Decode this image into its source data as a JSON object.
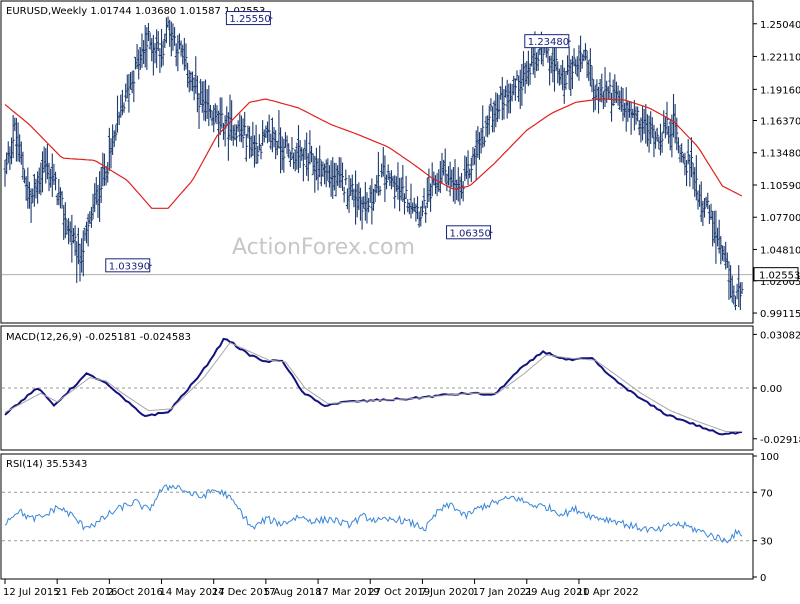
{
  "watermark": "ActionForex.com",
  "colors": {
    "price_bar": "#1c3a6e",
    "ma": "#e0211d",
    "macd": "#13137f",
    "macd_signal": "#a7a7a7",
    "rsi": "#3a86d8",
    "frame": "#000000",
    "grid": "#9a9a9a",
    "annotation_box": "#1a237e"
  },
  "chart_data": [
    {
      "id": "price",
      "type": "ohlc",
      "title": "EURUSD,Weekly  1.01744 1.03680 1.01587 1.02553",
      "ylim": [
        0.984,
        1.269
      ],
      "y_ticks": [
        "1.25040",
        "1.22110",
        "1.19160",
        "1.16370",
        "1.13480",
        "1.10590",
        "1.07700",
        "1.04810",
        "1.02005",
        "0.99115"
      ],
      "last_price": "1.02553",
      "series_anchors": [
        [
          0,
          1.115
        ],
        [
          6,
          1.155
        ],
        [
          16,
          1.09
        ],
        [
          24,
          1.125
        ],
        [
          30,
          1.11
        ],
        [
          38,
          1.07
        ],
        [
          46,
          1.04
        ],
        [
          50,
          1.06
        ],
        [
          56,
          1.095
        ],
        [
          64,
          1.13
        ],
        [
          72,
          1.175
        ],
        [
          80,
          1.21
        ],
        [
          88,
          1.235
        ],
        [
          96,
          1.225
        ],
        [
          100,
          1.25
        ],
        [
          106,
          1.23
        ],
        [
          114,
          1.2
        ],
        [
          124,
          1.17
        ],
        [
          134,
          1.16
        ],
        [
          144,
          1.155
        ],
        [
          154,
          1.14
        ],
        [
          164,
          1.15
        ],
        [
          174,
          1.135
        ],
        [
          184,
          1.13
        ],
        [
          194,
          1.12
        ],
        [
          204,
          1.11
        ],
        [
          214,
          1.1
        ],
        [
          222,
          1.085
        ],
        [
          232,
          1.115
        ],
        [
          242,
          1.1
        ],
        [
          250,
          1.09
        ],
        [
          256,
          1.08
        ],
        [
          262,
          1.1
        ],
        [
          270,
          1.12
        ],
        [
          274,
          1.105
        ],
        [
          280,
          1.1
        ],
        [
          290,
          1.14
        ],
        [
          300,
          1.175
        ],
        [
          310,
          1.19
        ],
        [
          320,
          1.205
        ],
        [
          328,
          1.225
        ],
        [
          334,
          1.22
        ],
        [
          342,
          1.2
        ],
        [
          350,
          1.215
        ],
        [
          356,
          1.225
        ],
        [
          362,
          1.185
        ],
        [
          370,
          1.19
        ],
        [
          380,
          1.175
        ],
        [
          390,
          1.16
        ],
        [
          400,
          1.15
        ],
        [
          410,
          1.16
        ],
        [
          416,
          1.13
        ],
        [
          422,
          1.12
        ],
        [
          426,
          1.095
        ],
        [
          432,
          1.08
        ],
        [
          436,
          1.06
        ],
        [
          440,
          1.04
        ],
        [
          444,
          1.025
        ],
        [
          448,
          1.0
        ],
        [
          452,
          1.02
        ]
      ],
      "ma_anchors": [
        [
          0,
          1.178
        ],
        [
          15,
          1.16
        ],
        [
          35,
          1.13
        ],
        [
          55,
          1.128
        ],
        [
          75,
          1.11
        ],
        [
          90,
          1.085
        ],
        [
          100,
          1.085
        ],
        [
          115,
          1.11
        ],
        [
          130,
          1.15
        ],
        [
          150,
          1.18
        ],
        [
          160,
          1.183
        ],
        [
          180,
          1.175
        ],
        [
          200,
          1.16
        ],
        [
          215,
          1.152
        ],
        [
          235,
          1.14
        ],
        [
          250,
          1.125
        ],
        [
          262,
          1.112
        ],
        [
          275,
          1.102
        ],
        [
          285,
          1.105
        ],
        [
          300,
          1.125
        ],
        [
          320,
          1.155
        ],
        [
          335,
          1.17
        ],
        [
          350,
          1.18
        ],
        [
          365,
          1.183
        ],
        [
          380,
          1.182
        ],
        [
          395,
          1.175
        ],
        [
          410,
          1.163
        ],
        [
          425,
          1.14
        ],
        [
          440,
          1.105
        ],
        [
          452,
          1.096
        ]
      ],
      "x_ticks": [
        {
          "i": 0,
          "label": "12 Jul 2015"
        },
        {
          "i": 32,
          "label": "21 Feb 2016"
        },
        {
          "i": 64,
          "label": "2 Oct 2016"
        },
        {
          "i": 96,
          "label": "14 May 2017"
        },
        {
          "i": 128,
          "label": "24 Dec 2017"
        },
        {
          "i": 160,
          "label": "5 Aug 2018"
        },
        {
          "i": 192,
          "label": "17 Mar 2019"
        },
        {
          "i": 224,
          "label": "27 Oct 2019"
        },
        {
          "i": 256,
          "label": "7 Jun 2020"
        },
        {
          "i": 288,
          "label": "17 Jan 2021"
        },
        {
          "i": 320,
          "label": "29 Aug 2021"
        },
        {
          "i": 352,
          "label": "10 Apr 2022"
        }
      ],
      "annotations": [
        {
          "label": "1.25550",
          "i": 164,
          "value": 1.2555,
          "pos": "left"
        },
        {
          "label": "1.03390",
          "i": 90,
          "value": 1.0339,
          "pos": "left"
        },
        {
          "label": "1.23480",
          "i": 347,
          "value": 1.2348,
          "pos": "left"
        },
        {
          "label": "1.06350",
          "i": 299,
          "value": 1.0635,
          "pos": "left"
        }
      ]
    },
    {
      "id": "macd",
      "type": "line",
      "title": "MACD(12,26,9) -0.025181 -0.024583",
      "ylim": [
        -0.0345,
        0.0345
      ],
      "y_ticks": [
        "0.030824",
        "0.00",
        "-0.029183"
      ],
      "series": [
        {
          "role": "macd",
          "anchors": [
            [
              0,
              -0.015
            ],
            [
              20,
              0.0
            ],
            [
              30,
              -0.01
            ],
            [
              50,
              0.008
            ],
            [
              60,
              0.004
            ],
            [
              70,
              -0.004
            ],
            [
              85,
              -0.016
            ],
            [
              100,
              -0.014
            ],
            [
              120,
              0.008
            ],
            [
              135,
              0.029
            ],
            [
              148,
              0.02
            ],
            [
              160,
              0.015
            ],
            [
              170,
              0.016
            ],
            [
              182,
              -0.002
            ],
            [
              195,
              -0.01
            ],
            [
              210,
              -0.008
            ],
            [
              230,
              -0.007
            ],
            [
              250,
              -0.006
            ],
            [
              270,
              -0.004
            ],
            [
              285,
              -0.003
            ],
            [
              300,
              -0.004
            ],
            [
              315,
              0.01
            ],
            [
              330,
              0.021
            ],
            [
              345,
              0.016
            ],
            [
              360,
              0.017
            ],
            [
              372,
              0.006
            ],
            [
              388,
              -0.005
            ],
            [
              405,
              -0.015
            ],
            [
              420,
              -0.02
            ],
            [
              440,
              -0.027
            ],
            [
              452,
              -0.025
            ]
          ]
        },
        {
          "role": "signal",
          "anchors": [
            [
              0,
              -0.014
            ],
            [
              22,
              -0.003
            ],
            [
              32,
              -0.008
            ],
            [
              52,
              0.006
            ],
            [
              62,
              0.004
            ],
            [
              72,
              -0.003
            ],
            [
              88,
              -0.013
            ],
            [
              102,
              -0.012
            ],
            [
              122,
              0.006
            ],
            [
              138,
              0.026
            ],
            [
              150,
              0.021
            ],
            [
              162,
              0.016
            ],
            [
              172,
              0.015
            ],
            [
              184,
              0.0
            ],
            [
              198,
              -0.009
            ],
            [
              212,
              -0.008
            ],
            [
              232,
              -0.007
            ],
            [
              252,
              -0.006
            ],
            [
              272,
              -0.004
            ],
            [
              288,
              -0.003
            ],
            [
              302,
              -0.003
            ],
            [
              318,
              0.008
            ],
            [
              332,
              0.019
            ],
            [
              348,
              0.017
            ],
            [
              362,
              0.016
            ],
            [
              374,
              0.008
            ],
            [
              390,
              -0.003
            ],
            [
              408,
              -0.013
            ],
            [
              424,
              -0.019
            ],
            [
              442,
              -0.025
            ],
            [
              452,
              -0.025
            ]
          ]
        }
      ]
    },
    {
      "id": "rsi",
      "type": "line",
      "title": "RSI(14) 35.5343",
      "ylim": [
        0,
        100
      ],
      "y_ticks": [
        "100",
        "70",
        "30",
        "0"
      ],
      "levels": [
        70,
        30
      ],
      "series": [
        {
          "role": "rsi",
          "anchors": [
            [
              0,
              45
            ],
            [
              8,
              55
            ],
            [
              16,
              48
            ],
            [
              24,
              50
            ],
            [
              32,
              58
            ],
            [
              40,
              52
            ],
            [
              48,
              42
            ],
            [
              56,
              44
            ],
            [
              64,
              52
            ],
            [
              72,
              58
            ],
            [
              80,
              62
            ],
            [
              88,
              55
            ],
            [
              96,
              72
            ],
            [
              104,
              76
            ],
            [
              112,
              70
            ],
            [
              120,
              66
            ],
            [
              128,
              72
            ],
            [
              136,
              68
            ],
            [
              144,
              55
            ],
            [
              152,
              40
            ],
            [
              160,
              48
            ],
            [
              170,
              44
            ],
            [
              180,
              50
            ],
            [
              190,
              46
            ],
            [
              200,
              48
            ],
            [
              210,
              43
            ],
            [
              220,
              50
            ],
            [
              230,
              46
            ],
            [
              240,
              48
            ],
            [
              250,
              44
            ],
            [
              258,
              40
            ],
            [
              266,
              55
            ],
            [
              274,
              60
            ],
            [
              282,
              50
            ],
            [
              292,
              58
            ],
            [
              302,
              62
            ],
            [
              312,
              66
            ],
            [
              322,
              60
            ],
            [
              332,
              58
            ],
            [
              342,
              52
            ],
            [
              350,
              56
            ],
            [
              360,
              50
            ],
            [
              368,
              48
            ],
            [
              376,
              46
            ],
            [
              384,
              42
            ],
            [
              392,
              40
            ],
            [
              400,
              38
            ],
            [
              410,
              44
            ],
            [
              418,
              42
            ],
            [
              426,
              38
            ],
            [
              434,
              34
            ],
            [
              442,
              30
            ],
            [
              448,
              36
            ],
            [
              452,
              35.5
            ]
          ]
        }
      ]
    }
  ]
}
